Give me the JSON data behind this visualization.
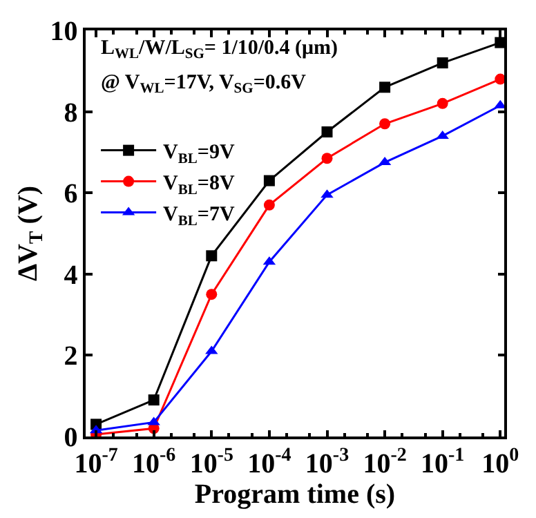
{
  "chart_data": {
    "type": "line",
    "xlabel": "Program time (s)",
    "ylabel": "ΔV$_{T}$ (V)",
    "annotations": [
      "L$_{WL}$/W/L$_{SG}$= 1/10/0.4 (μm)",
      "@ V$_{WL}$=17V, V$_{SG}$=0.6V"
    ],
    "x": [
      1e-07,
      1e-06,
      1e-05,
      0.0001,
      0.001,
      0.01,
      0.1,
      1
    ],
    "series": [
      {
        "name": "V$_{BL}$=9V",
        "color": "#000000",
        "marker": "square",
        "values": [
          0.3,
          0.9,
          4.45,
          6.3,
          7.5,
          8.6,
          9.2,
          9.7
        ]
      },
      {
        "name": "V$_{BL}$=8V",
        "color": "#ff0000",
        "marker": "circle",
        "values": [
          0.05,
          0.2,
          3.5,
          5.7,
          6.85,
          7.7,
          8.2,
          8.8
        ]
      },
      {
        "name": "V$_{BL}$=7V",
        "color": "#0000ff",
        "marker": "triangle",
        "values": [
          0.15,
          0.35,
          2.1,
          4.3,
          5.95,
          6.75,
          7.4,
          8.15
        ]
      }
    ],
    "log": "x",
    "xlim": [
      6.6e-08,
      1.17
    ],
    "xticks": [
      {
        "value": 1e-07,
        "label": "10$^{-7}$"
      },
      {
        "value": 1e-06,
        "label": "10$^{-6}$"
      },
      {
        "value": 1e-05,
        "label": "10$^{-5}$"
      },
      {
        "value": 0.0001,
        "label": "10$^{-4}$"
      },
      {
        "value": 0.001,
        "label": "10$^{-3}$"
      },
      {
        "value": 0.01,
        "label": "10$^{-2}$"
      },
      {
        "value": 0.1,
        "label": "10$^{-1}$"
      },
      {
        "value": 1,
        "label": "10$^{0}$"
      }
    ],
    "ylim": [
      0,
      10
    ],
    "yticks": [
      0,
      2,
      4,
      6,
      8,
      10
    ],
    "legend": "top left",
    "line_style": "solid"
  }
}
